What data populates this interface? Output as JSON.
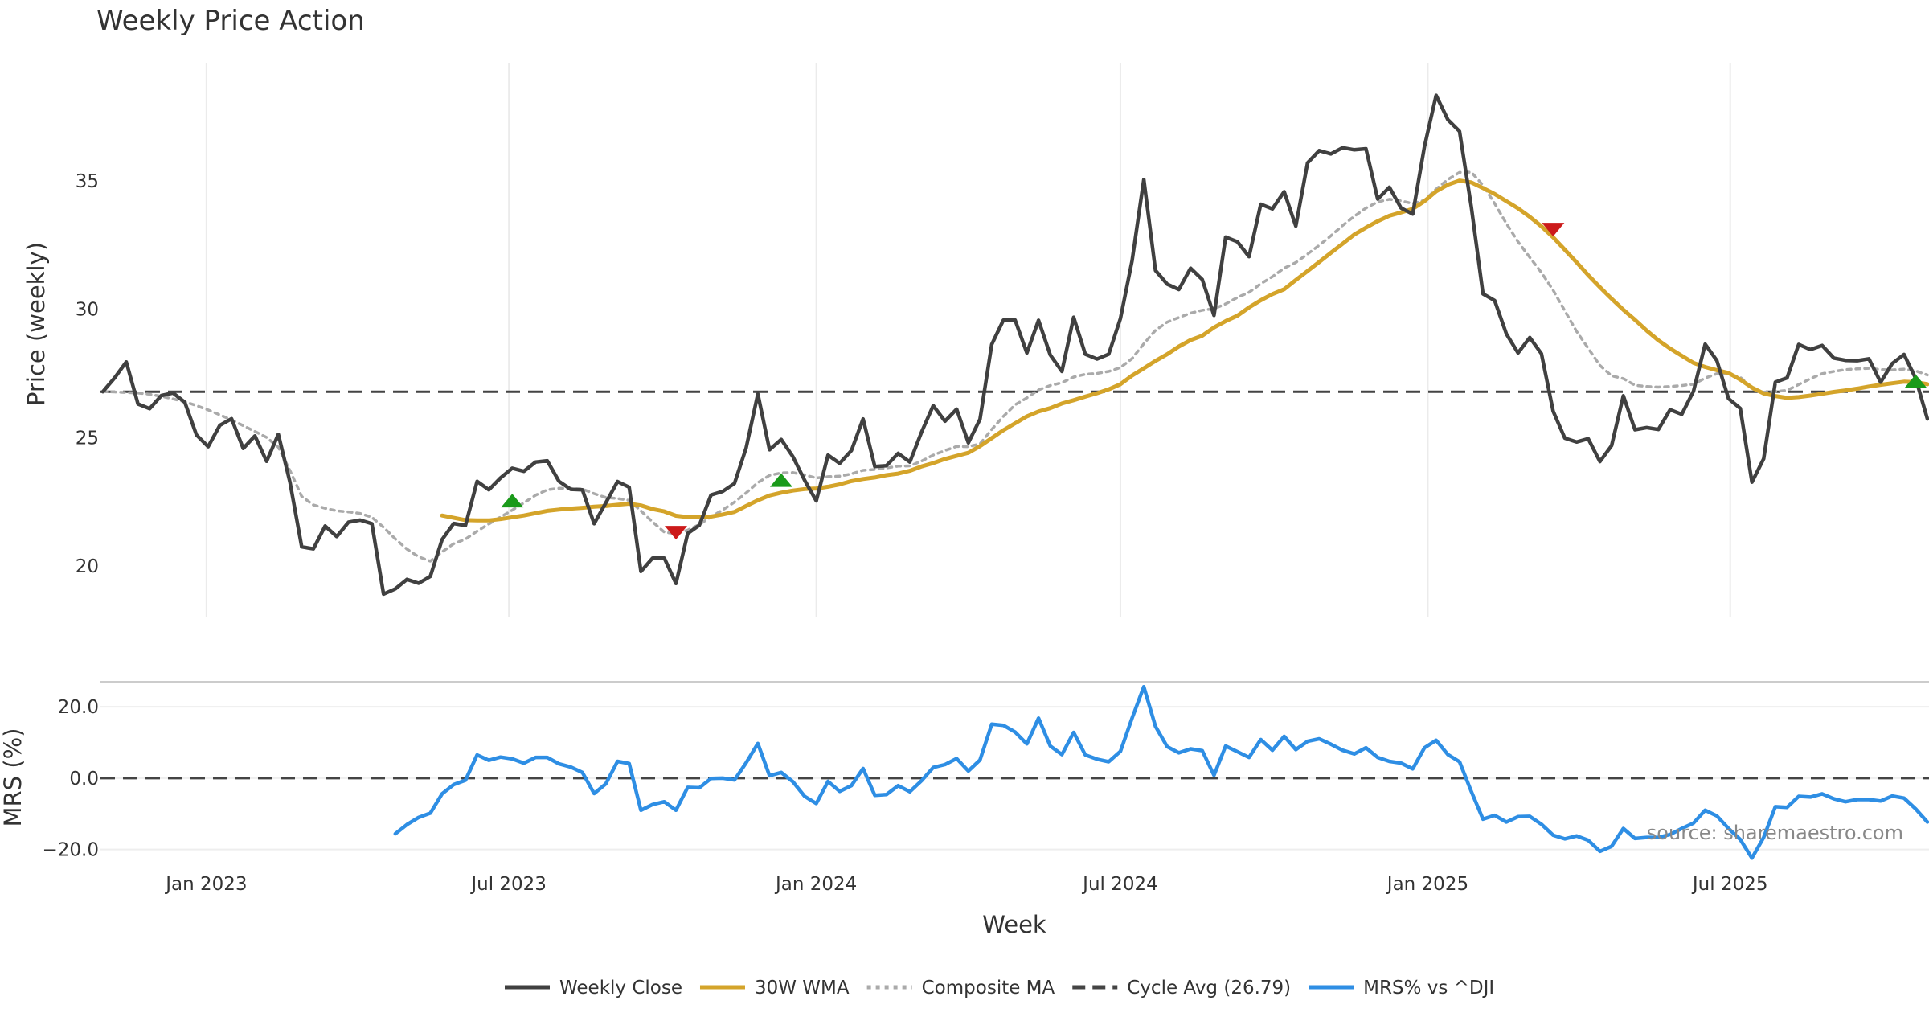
{
  "chart_data": [
    {
      "type": "line",
      "title": "Weekly Price Action",
      "ylabel": "Price (weekly)",
      "ylim": [
        18.0,
        39.6
      ],
      "yticks": [
        20,
        25,
        30,
        35
      ],
      "grid": "vertical",
      "x_start": "2022-10-31",
      "x_step_days": 7,
      "series": [
        {
          "name": "Weekly Close",
          "color": "#404040",
          "style": "solid",
          "values": [
            26.79,
            27.33,
            27.95,
            26.31,
            26.13,
            26.64,
            26.74,
            26.38,
            25.11,
            24.65,
            25.48,
            25.74,
            24.58,
            25.07,
            24.08,
            25.13,
            23.26,
            20.75,
            20.67,
            21.56,
            21.15,
            21.71,
            21.79,
            21.65,
            18.91,
            19.11,
            19.48,
            19.33,
            19.6,
            21.03,
            21.66,
            21.58,
            23.3,
            22.97,
            23.43,
            23.81,
            23.69,
            24.05,
            24.1,
            23.3,
            22.99,
            22.97,
            21.65,
            22.46,
            23.29,
            23.07,
            19.79,
            20.31,
            20.31,
            19.32,
            21.27,
            21.59,
            22.77,
            22.91,
            23.22,
            24.6,
            26.7,
            24.53,
            24.93,
            24.26,
            23.34,
            22.54,
            24.32,
            24.0,
            24.5,
            25.73,
            23.88,
            23.91,
            24.39,
            24.05,
            25.22,
            26.25,
            25.64,
            26.11,
            24.8,
            25.72,
            28.63,
            29.58,
            29.58,
            28.3,
            29.57,
            28.22,
            27.58,
            29.69,
            28.25,
            28.06,
            28.25,
            29.64,
            31.89,
            35.05,
            31.51,
            30.98,
            30.77,
            31.6,
            31.16,
            29.76,
            32.81,
            32.63,
            32.05,
            34.09,
            33.91,
            34.58,
            33.24,
            35.7,
            36.18,
            36.05,
            36.29,
            36.21,
            36.25,
            34.29,
            34.75,
            33.94,
            33.71,
            36.34,
            38.33,
            37.38,
            36.93,
            34.0,
            30.6,
            30.34,
            29.04,
            28.3,
            28.9,
            28.27,
            26.03,
            24.98,
            24.83,
            24.96,
            24.07,
            24.69,
            26.63,
            25.31,
            25.39,
            25.32,
            26.09,
            25.91,
            26.81,
            28.64,
            28.0,
            26.52,
            26.14,
            23.27,
            24.18,
            27.16,
            27.33,
            28.63,
            28.43,
            28.59,
            28.1,
            28.01,
            28.0,
            28.07,
            27.16,
            27.89,
            28.24,
            27.31,
            25.73
          ]
        },
        {
          "name": "30W WMA",
          "color": "#d4a42a",
          "style": "solid",
          "start_index": 29,
          "values": [
            21.97,
            21.88,
            21.79,
            21.78,
            21.78,
            21.83,
            21.9,
            21.97,
            22.06,
            22.15,
            22.2,
            22.24,
            22.27,
            22.31,
            22.34,
            22.39,
            22.43,
            22.36,
            22.22,
            22.13,
            21.96,
            21.91,
            21.91,
            21.93,
            22.01,
            22.11,
            22.34,
            22.56,
            22.75,
            22.86,
            22.94,
            23.0,
            23.02,
            23.09,
            23.18,
            23.31,
            23.39,
            23.45,
            23.54,
            23.6,
            23.71,
            23.88,
            24.01,
            24.17,
            24.29,
            24.41,
            24.67,
            24.98,
            25.29,
            25.56,
            25.83,
            26.02,
            26.15,
            26.33,
            26.46,
            26.6,
            26.73,
            26.88,
            27.08,
            27.42,
            27.7,
            27.99,
            28.25,
            28.55,
            28.8,
            28.97,
            29.29,
            29.54,
            29.75,
            30.07,
            30.35,
            30.59,
            30.78,
            31.14,
            31.49,
            31.84,
            32.2,
            32.55,
            32.91,
            33.18,
            33.43,
            33.64,
            33.77,
            33.91,
            34.21,
            34.59,
            34.85,
            35.01,
            34.94,
            34.72,
            34.49,
            34.21,
            33.93,
            33.6,
            33.23,
            32.8,
            32.32,
            31.83,
            31.33,
            30.86,
            30.41,
            29.98,
            29.59,
            29.17,
            28.79,
            28.47,
            28.19,
            27.91,
            27.75,
            27.63,
            27.52,
            27.26,
            26.95,
            26.72,
            26.62,
            26.55,
            26.58,
            26.64,
            26.71,
            26.78,
            26.84,
            26.91,
            26.99,
            27.06,
            27.12,
            27.18,
            27.16,
            27.08
          ]
        },
        {
          "name": "Composite MA",
          "color": "#aaaaaa",
          "style": "dotted",
          "values": [
            26.79,
            26.78,
            26.76,
            26.74,
            26.69,
            26.61,
            26.51,
            26.4,
            26.25,
            26.08,
            25.89,
            25.69,
            25.47,
            25.24,
            25.01,
            24.63,
            23.72,
            22.71,
            22.38,
            22.25,
            22.15,
            22.11,
            22.05,
            21.9,
            21.51,
            21.06,
            20.66,
            20.36,
            20.19,
            20.55,
            20.87,
            21.05,
            21.36,
            21.64,
            21.91,
            22.18,
            22.46,
            22.76,
            22.97,
            23.03,
            23.02,
            23.0,
            22.82,
            22.67,
            22.63,
            22.56,
            22.15,
            21.72,
            21.32,
            21.26,
            21.4,
            21.62,
            21.92,
            22.19,
            22.49,
            22.85,
            23.25,
            23.53,
            23.63,
            23.64,
            23.55,
            23.43,
            23.48,
            23.5,
            23.59,
            23.73,
            23.76,
            23.82,
            23.89,
            23.9,
            24.09,
            24.32,
            24.5,
            24.66,
            24.65,
            24.76,
            25.32,
            25.83,
            26.28,
            26.55,
            26.86,
            27.03,
            27.14,
            27.36,
            27.47,
            27.5,
            27.58,
            27.73,
            28.08,
            28.66,
            29.18,
            29.5,
            29.68,
            29.85,
            29.96,
            30.02,
            30.21,
            30.46,
            30.66,
            30.99,
            31.27,
            31.6,
            31.82,
            32.15,
            32.49,
            32.86,
            33.26,
            33.62,
            33.94,
            34.18,
            34.28,
            34.22,
            34.12,
            34.24,
            34.68,
            35.05,
            35.33,
            35.34,
            34.83,
            34.12,
            33.34,
            32.63,
            32.02,
            31.43,
            30.74,
            29.94,
            29.14,
            28.48,
            27.81,
            27.41,
            27.3,
            27.04,
            26.99,
            26.97,
            26.99,
            27.03,
            27.08,
            27.32,
            27.49,
            27.48,
            27.35,
            26.94,
            26.77,
            26.8,
            26.84,
            27.07,
            27.3,
            27.49,
            27.58,
            27.65,
            27.68,
            27.7,
            27.65,
            27.64,
            27.67,
            27.6,
            27.44
          ]
        },
        {
          "name": "Cycle Avg (26.79)",
          "color": "#444444",
          "style": "dashed",
          "value": 26.79
        }
      ],
      "markers": [
        {
          "type": "buy",
          "color": "#1a9a1a",
          "index": 35,
          "y": 22.55
        },
        {
          "type": "sell",
          "color": "#cc1a1a",
          "index": 49,
          "y": 21.3
        },
        {
          "type": "buy",
          "color": "#1a9a1a",
          "index": 58,
          "y": 23.35
        },
        {
          "type": "sell",
          "color": "#cc1a1a",
          "index": 124,
          "y": 33.1
        },
        {
          "type": "buy",
          "color": "#1a9a1a",
          "index": 155,
          "y": 27.2
        }
      ]
    },
    {
      "type": "line",
      "ylabel": "MRS (%)",
      "ylim": [
        -23,
        27
      ],
      "yticks": [
        {
          "value": 20,
          "label": "20.0"
        },
        {
          "value": 0,
          "label": "0.0"
        },
        {
          "value": -20,
          "label": "−20.0"
        }
      ],
      "xlabel": "Week",
      "xticks": [
        {
          "date": "2023-01-01",
          "label": "Jan 2023"
        },
        {
          "date": "2023-07-01",
          "label": "Jul 2023"
        },
        {
          "date": "2024-01-01",
          "label": "Jan 2024"
        },
        {
          "date": "2024-07-01",
          "label": "Jul 2024"
        },
        {
          "date": "2025-01-01",
          "label": "Jan 2025"
        },
        {
          "date": "2025-07-01",
          "label": "Jul 2025"
        }
      ],
      "zero_line": {
        "value": 0,
        "style": "dashed",
        "color": "#444444"
      },
      "series": [
        {
          "name": "MRS% vs ^DJI",
          "color": "#2e8ee4",
          "start_index": 25,
          "values": [
            -15.6,
            -13.0,
            -11.0,
            -9.8,
            -4.4,
            -1.8,
            -0.6,
            6.5,
            5.0,
            5.9,
            5.4,
            4.2,
            5.8,
            5.8,
            4.0,
            3.1,
            1.6,
            -4.3,
            -1.6,
            4.7,
            4.1,
            -9.0,
            -7.4,
            -6.6,
            -9.0,
            -2.6,
            -2.7,
            -0.1,
            0.0,
            -0.5,
            4.3,
            9.7,
            0.7,
            1.6,
            -1.0,
            -5.1,
            -7.1,
            -0.9,
            -3.7,
            -2.1,
            2.7,
            -4.8,
            -4.6,
            -2.1,
            -3.8,
            -0.7,
            3.0,
            3.8,
            5.5,
            2.0,
            5.1,
            15.1,
            14.8,
            12.9,
            9.6,
            16.8,
            9.0,
            6.6,
            12.8,
            6.5,
            5.3,
            4.6,
            7.5,
            16.8,
            25.6,
            14.5,
            8.8,
            7.1,
            8.2,
            7.7,
            0.8,
            9.0,
            7.4,
            5.8,
            10.8,
            7.8,
            11.7,
            8.0,
            10.3,
            11.0,
            9.5,
            7.8,
            6.8,
            8.5,
            5.8,
            4.7,
            4.2,
            2.6,
            8.5,
            10.6,
            6.6,
            4.6,
            -3.7,
            -11.5,
            -10.4,
            -12.3,
            -10.8,
            -10.7,
            -12.9,
            -16.0,
            -17.0,
            -16.2,
            -17.4,
            -20.5,
            -19.1,
            -14.1,
            -16.9,
            -16.6,
            -16.6,
            -15.8,
            -14.1,
            -12.6,
            -9.0,
            -10.6,
            -14.1,
            -17.2,
            -22.4,
            -16.6,
            -8.0,
            -8.2,
            -5.1,
            -5.3,
            -4.4,
            -5.8,
            -6.6,
            -6.0,
            -6.0,
            -6.4,
            -5.0,
            -5.6,
            -8.6,
            -12.3
          ]
        }
      ]
    }
  ],
  "legend": {
    "placement": "bottom-center",
    "items": [
      {
        "label": "Weekly Close",
        "color": "#404040",
        "style": "solid"
      },
      {
        "label": "30W WMA",
        "color": "#d4a42a",
        "style": "solid"
      },
      {
        "label": "Composite MA",
        "color": "#aaaaaa",
        "style": "dotted"
      },
      {
        "label": "Cycle Avg (26.79)",
        "color": "#444444",
        "style": "dashed"
      },
      {
        "label": "MRS% vs ^DJI",
        "color": "#2e8ee4",
        "style": "solid"
      }
    ]
  },
  "source_note": "source: sharemaestro.com"
}
